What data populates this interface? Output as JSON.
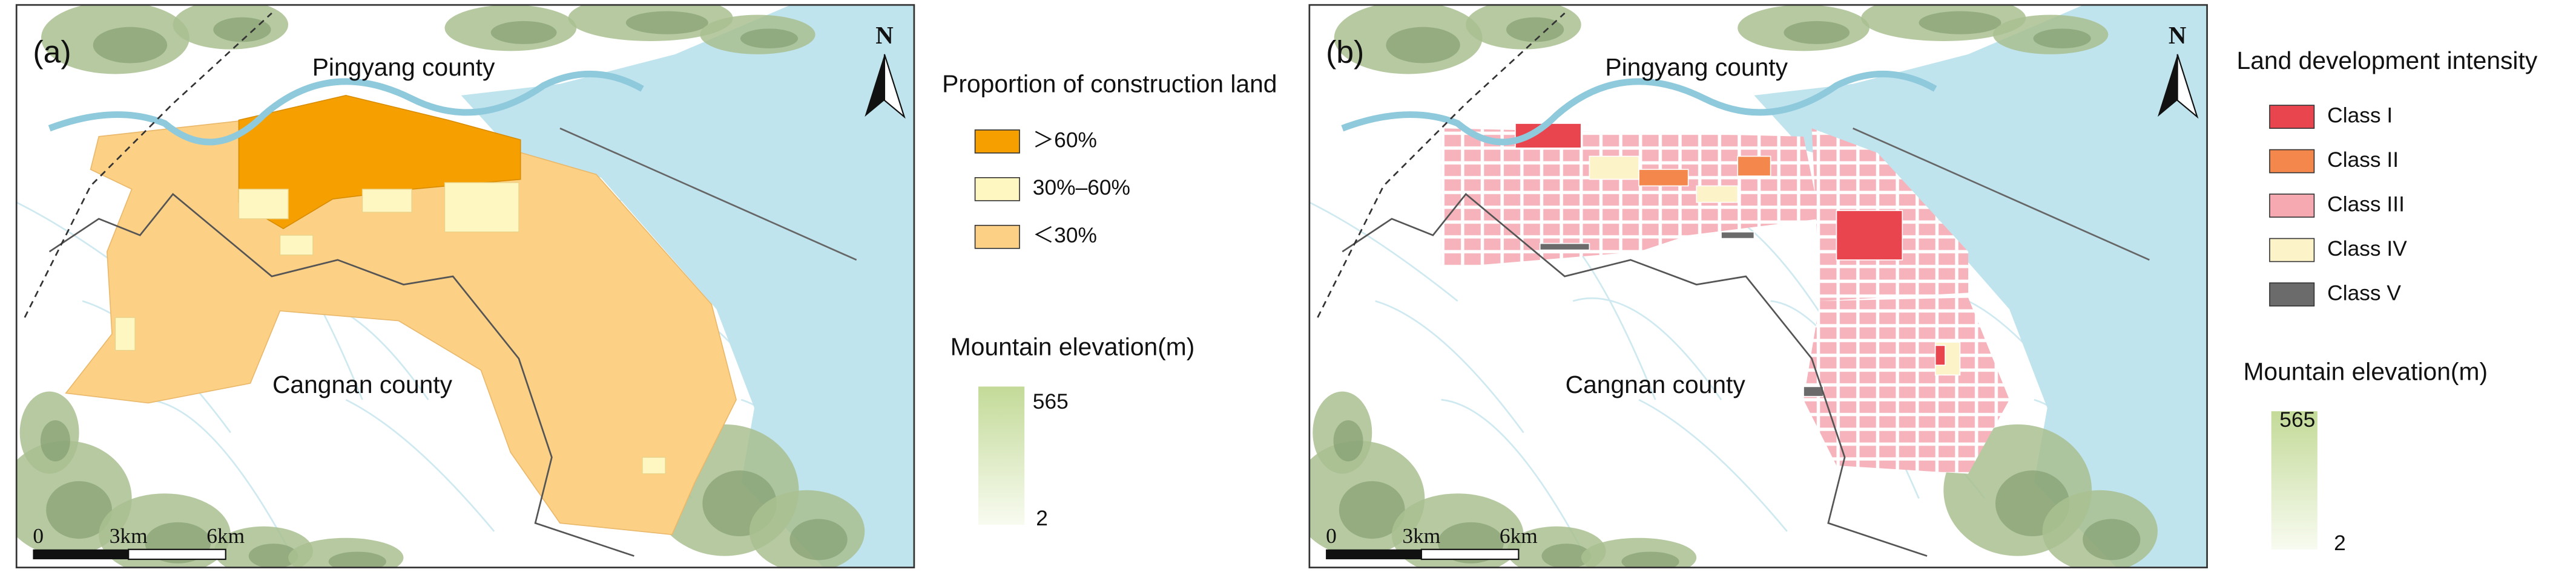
{
  "panels": [
    {
      "label": "(a)",
      "north": "N",
      "places": [
        "Pingyang county",
        "Cangnan county"
      ],
      "scale_bar": [
        "0",
        "3km",
        "6km"
      ],
      "legend": {
        "title": "Proportion of construction land",
        "items": [
          {
            "label": "＞60%",
            "color": "#f5a000"
          },
          {
            "label": "30%–60%",
            "color": "#fff7c2"
          },
          {
            "label": "＜30%",
            "color": "#fcd085"
          }
        ]
      },
      "elevation": {
        "title": "Mountain elevation(m)",
        "max": 565,
        "min": 2
      }
    },
    {
      "label": "(b)",
      "north": "N",
      "places": [
        "Pingyang county",
        "Cangnan county"
      ],
      "scale_bar": [
        "0",
        "3km",
        "6km"
      ],
      "legend": {
        "title": "Land development intensity",
        "items": [
          {
            "label": "Class I",
            "color": "#e8454f"
          },
          {
            "label": "Class II",
            "color": "#f4874b"
          },
          {
            "label": "Class III",
            "color": "#f6a9b1"
          },
          {
            "label": "Class IV",
            "color": "#fdf3c8"
          },
          {
            "label": "Class V",
            "color": "#6b6b6b"
          }
        ]
      },
      "elevation": {
        "title": "Mountain elevation(m)",
        "max": 565,
        "min": 2
      }
    }
  ]
}
